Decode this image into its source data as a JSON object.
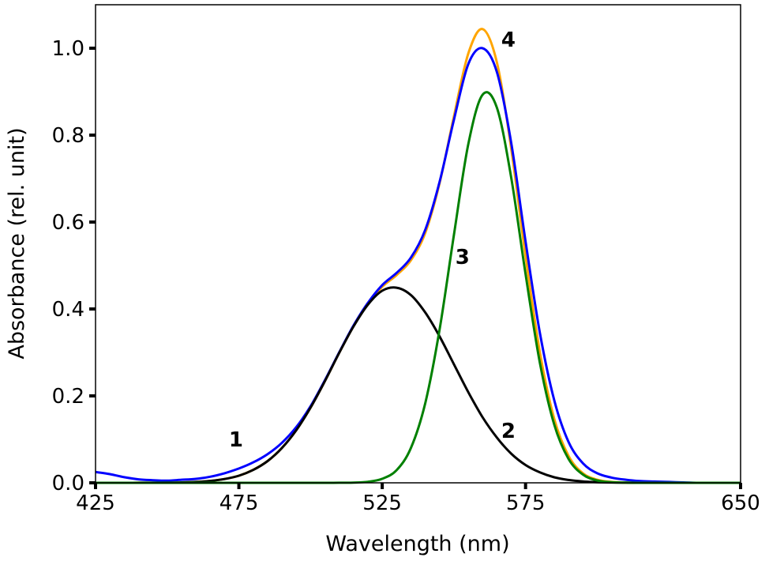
{
  "chart_data": {
    "type": "line",
    "title": "",
    "xlabel": "Wavelength (nm)",
    "ylabel": "Absorbance (rel. unit)",
    "xlim": [
      425,
      650
    ],
    "ylim": [
      0,
      1.1
    ],
    "xticks": [
      425,
      475,
      525,
      575,
      650
    ],
    "yticks": [
      0.0,
      0.2,
      0.4,
      0.6,
      0.8,
      1.0
    ],
    "ytick_labels": [
      "0.0",
      "0.2",
      "0.4",
      "0.6",
      "0.8",
      "1.0"
    ],
    "xtick_labels": [
      "425",
      "475",
      "525",
      "575",
      "650"
    ],
    "grid": false,
    "x": [
      425,
      430,
      435,
      440,
      445,
      450,
      455,
      460,
      465,
      470,
      475,
      480,
      485,
      490,
      495,
      500,
      505,
      510,
      515,
      520,
      525,
      530,
      535,
      540,
      545,
      550,
      555,
      560,
      565,
      570,
      575,
      580,
      585,
      590,
      595,
      600,
      605,
      610,
      615,
      620,
      625,
      630,
      635,
      640,
      645,
      650
    ],
    "series": [
      {
        "name": "1",
        "color": "#0000ff",
        "values": [
          0.025,
          0.02,
          0.013,
          0.008,
          0.006,
          0.005,
          0.007,
          0.009,
          0.014,
          0.022,
          0.033,
          0.047,
          0.066,
          0.092,
          0.128,
          0.176,
          0.236,
          0.3,
          0.362,
          0.414,
          0.455,
          0.483,
          0.518,
          0.582,
          0.692,
          0.835,
          0.963,
          1.0,
          0.945,
          0.782,
          0.555,
          0.345,
          0.19,
          0.094,
          0.045,
          0.022,
          0.012,
          0.007,
          0.004,
          0.003,
          0.002,
          0.001,
          0.0,
          0.0,
          0.0,
          0.0
        ]
      },
      {
        "name": "2",
        "color": "#000000",
        "values": [
          0,
          0,
          0,
          0.0001,
          0.00015,
          0.0004,
          0.0009,
          0.002,
          0.0043,
          0.0087,
          0.0164,
          0.0297,
          0.05,
          0.08,
          0.121,
          0.173,
          0.234,
          0.299,
          0.36,
          0.41,
          0.442,
          0.449,
          0.432,
          0.392,
          0.337,
          0.273,
          0.209,
          0.151,
          0.104,
          0.067,
          0.041,
          0.024,
          0.0128,
          0.0066,
          0.0032,
          0.0015,
          0.0007,
          0.0003,
          0,
          0,
          0,
          0,
          0,
          0,
          0,
          0
        ]
      },
      {
        "name": "3",
        "color": "#008000",
        "values": [
          0,
          0,
          0,
          0,
          0,
          0,
          0,
          0,
          0,
          0,
          0,
          0,
          0,
          0,
          0,
          0,
          0,
          0.0001,
          0.0005,
          0.0024,
          0.0092,
          0.029,
          0.08,
          0.183,
          0.352,
          0.57,
          0.778,
          0.893,
          0.863,
          0.702,
          0.48,
          0.276,
          0.134,
          0.055,
          0.019,
          0.0054,
          0.0013,
          0.0003,
          0,
          0,
          0,
          0,
          0,
          0,
          0,
          0
        ]
      },
      {
        "name": "4",
        "color": "#ffa500",
        "values": [
          0,
          0,
          0,
          0.0001,
          0.0002,
          0.0004,
          0.0009,
          0.002,
          0.0043,
          0.0087,
          0.0164,
          0.03,
          0.05,
          0.08,
          0.121,
          0.173,
          0.234,
          0.299,
          0.3605,
          0.412,
          0.451,
          0.478,
          0.512,
          0.575,
          0.689,
          0.843,
          0.987,
          1.044,
          0.967,
          0.769,
          0.521,
          0.3,
          0.147,
          0.062,
          0.022,
          0.007,
          0.002,
          0.0006,
          0,
          0,
          0,
          0,
          0,
          0,
          0,
          0
        ]
      }
    ],
    "draw_order": [
      "4",
      "1",
      "2",
      "3"
    ],
    "annotations": [
      {
        "text": "1",
        "x": 474,
        "y": 0.1
      },
      {
        "text": "2",
        "x": 569,
        "y": 0.12
      },
      {
        "text": "3",
        "x": 553,
        "y": 0.52
      },
      {
        "text": "4",
        "x": 569,
        "y": 1.02
      }
    ]
  }
}
